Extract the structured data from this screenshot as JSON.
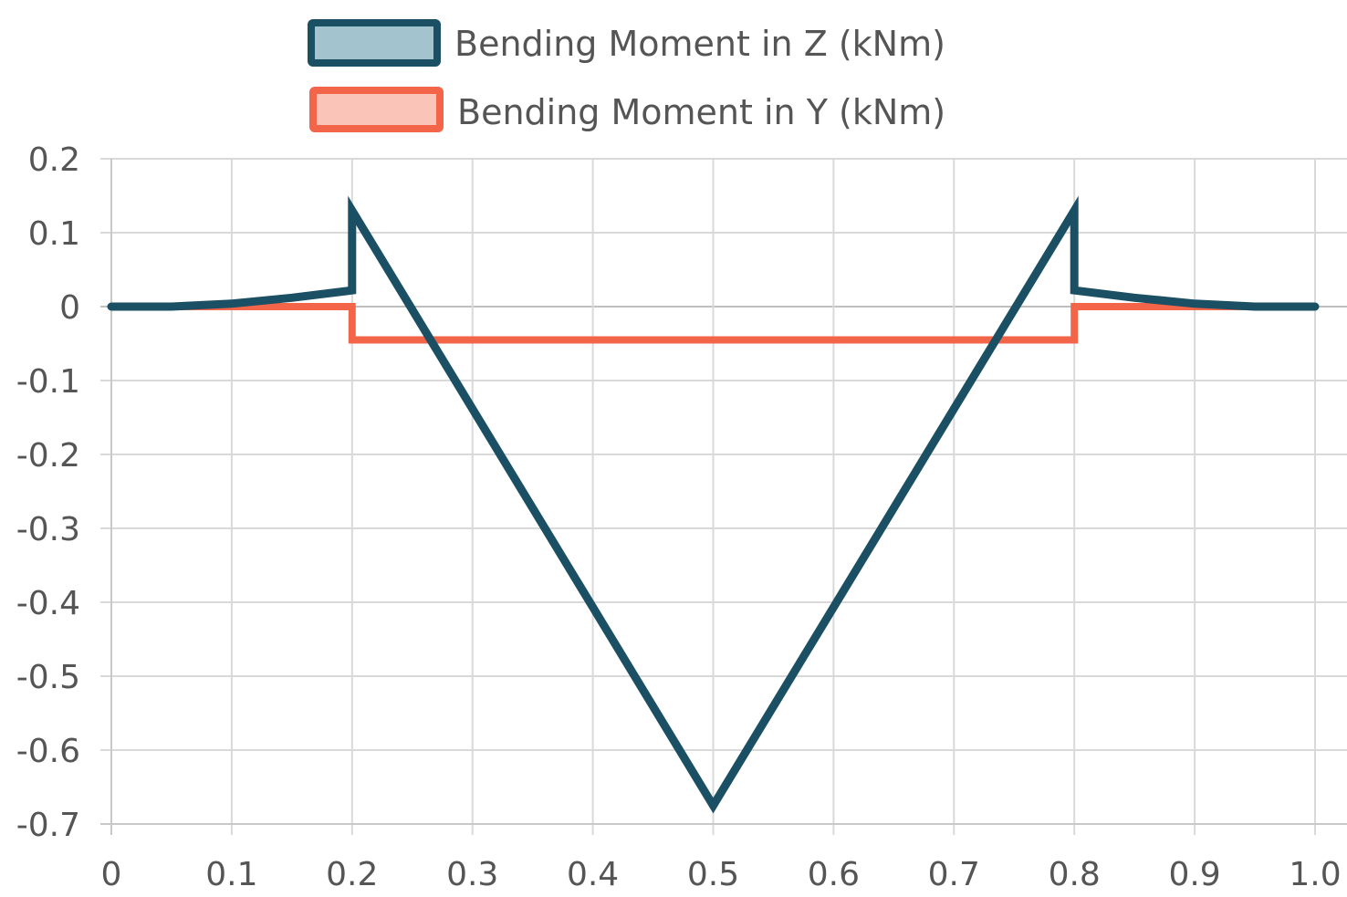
{
  "chart_data": {
    "type": "line",
    "title": "",
    "xlabel": "",
    "ylabel": "",
    "xlim": [
      0,
      1.0
    ],
    "ylim": [
      -0.7,
      0.2
    ],
    "x_ticks": [
      0,
      0.1,
      0.2,
      0.3,
      0.4,
      0.5,
      0.6,
      0.7,
      0.8,
      0.9,
      1.0
    ],
    "x_tick_labels": [
      "0",
      "0.1",
      "0.2",
      "0.3",
      "0.4",
      "0.5",
      "0.6",
      "0.7",
      "0.8",
      "0.9",
      "1.0"
    ],
    "y_ticks": [
      0.2,
      0.1,
      0,
      -0.1,
      -0.2,
      -0.3,
      -0.4,
      -0.5,
      -0.6,
      -0.7
    ],
    "y_tick_labels": [
      "0.2",
      "0.1",
      "0",
      "-0.1",
      "-0.2",
      "-0.3",
      "-0.4",
      "-0.5",
      "-0.6",
      "-0.7"
    ],
    "grid": true,
    "legend_position": "top-center",
    "series": [
      {
        "name": "Bending Moment in Z (kNm)",
        "color": "#1b4f63",
        "fill": "#a3c3cf",
        "x": [
          0,
          0.05,
          0.1,
          0.15,
          0.2,
          0.2,
          0.5,
          0.8,
          0.8,
          0.85,
          0.9,
          0.95,
          1.0
        ],
        "y": [
          0,
          0,
          0.004,
          0.012,
          0.022,
          0.13,
          -0.675,
          0.13,
          0.022,
          0.012,
          0.004,
          0,
          0
        ]
      },
      {
        "name": "Bending Moment in Y (kNm)",
        "color": "#f26549",
        "fill": "#fbc4b8",
        "x": [
          0,
          0.2,
          0.2,
          0.8,
          0.8,
          1.0
        ],
        "y": [
          0,
          0,
          -0.045,
          -0.045,
          0,
          0
        ]
      }
    ]
  }
}
